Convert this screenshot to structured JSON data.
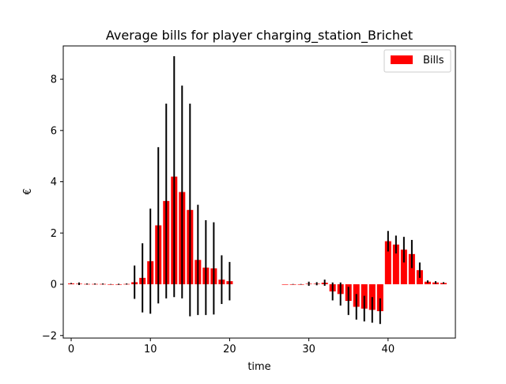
{
  "chart_data": {
    "type": "bar",
    "title": "Average bills for player charging_station_Brichet",
    "xlabel": "time",
    "ylabel": "€",
    "xlim": [
      -1,
      48.5
    ],
    "ylim": [
      -2.1,
      9.3
    ],
    "xticks": [
      0,
      10,
      20,
      30,
      40
    ],
    "yticks": [
      -2,
      0,
      2,
      4,
      6,
      8
    ],
    "tick_labels": {
      "x": [
        "0",
        "10",
        "20",
        "30",
        "40"
      ],
      "y": [
        "−2",
        "0",
        "2",
        "4",
        "6",
        "8"
      ]
    },
    "grid": false,
    "legend_position": "top-right",
    "colors": {
      "bar": "#ff0000",
      "error": "#000000"
    },
    "series": [
      {
        "name": "Bills",
        "x": [
          0,
          1,
          2,
          3,
          4,
          5,
          6,
          7,
          8,
          9,
          10,
          11,
          12,
          13,
          14,
          15,
          16,
          17,
          18,
          19,
          20,
          27,
          28,
          29,
          30,
          31,
          32,
          33,
          34,
          35,
          36,
          37,
          38,
          39,
          40,
          41,
          42,
          43,
          44,
          45,
          46,
          47
        ],
        "values": [
          0.03,
          0.02,
          0.01,
          0.01,
          0.01,
          0.0,
          0.0,
          0.01,
          0.08,
          0.25,
          0.9,
          2.3,
          3.25,
          4.2,
          3.6,
          2.9,
          0.95,
          0.65,
          0.62,
          0.18,
          0.12,
          0.0,
          0.0,
          0.0,
          0.02,
          0.02,
          0.06,
          -0.28,
          -0.38,
          -0.65,
          -0.88,
          -0.95,
          -1.0,
          -1.05,
          1.68,
          1.55,
          1.35,
          1.18,
          0.55,
          0.1,
          0.07,
          0.05
        ],
        "errors": [
          0.02,
          0.05,
          0.02,
          0.02,
          0.02,
          0.01,
          0.02,
          0.02,
          0.65,
          1.35,
          2.05,
          3.05,
          3.8,
          4.7,
          4.15,
          4.15,
          2.15,
          1.85,
          1.8,
          0.95,
          0.75,
          0.0,
          0.01,
          0.01,
          0.08,
          0.06,
          0.12,
          0.35,
          0.45,
          0.55,
          0.5,
          0.5,
          0.5,
          0.5,
          0.4,
          0.35,
          0.5,
          0.55,
          0.3,
          0.05,
          0.05,
          0.03
        ]
      }
    ]
  }
}
